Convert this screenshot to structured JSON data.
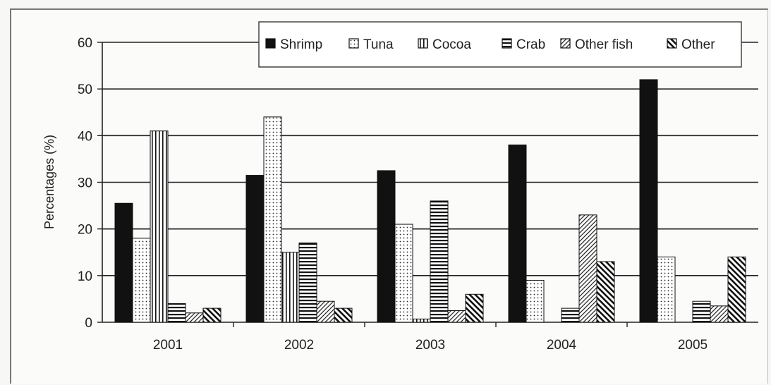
{
  "chart_data": {
    "type": "bar",
    "title": "",
    "xlabel": "",
    "ylabel": "Percentages (%)",
    "ylim": [
      0,
      60
    ],
    "yticks": [
      "0",
      "10",
      "20",
      "30",
      "40",
      "50",
      "60"
    ],
    "categories": [
      "2001",
      "2002",
      "2003",
      "2004",
      "2005"
    ],
    "grid": true,
    "legend_position": "top-right",
    "series": [
      {
        "name": "Shrimp",
        "pattern": "solid",
        "values": [
          25.5,
          31.5,
          32.5,
          38,
          52
        ]
      },
      {
        "name": "Tuna",
        "pattern": "dots",
        "values": [
          18,
          44,
          21,
          9,
          14
        ]
      },
      {
        "name": "Cocoa",
        "pattern": "vertical",
        "values": [
          41,
          15,
          0.7,
          0,
          0
        ]
      },
      {
        "name": "Crab",
        "pattern": "horizontal",
        "values": [
          4,
          17,
          26,
          3,
          4.5
        ]
      },
      {
        "name": "Other fish",
        "pattern": "diagonal-up",
        "values": [
          2,
          4.5,
          2.5,
          23,
          3.5
        ]
      },
      {
        "name": "Other",
        "pattern": "diagonal-down",
        "values": [
          3,
          3,
          6,
          13,
          14
        ]
      }
    ]
  }
}
